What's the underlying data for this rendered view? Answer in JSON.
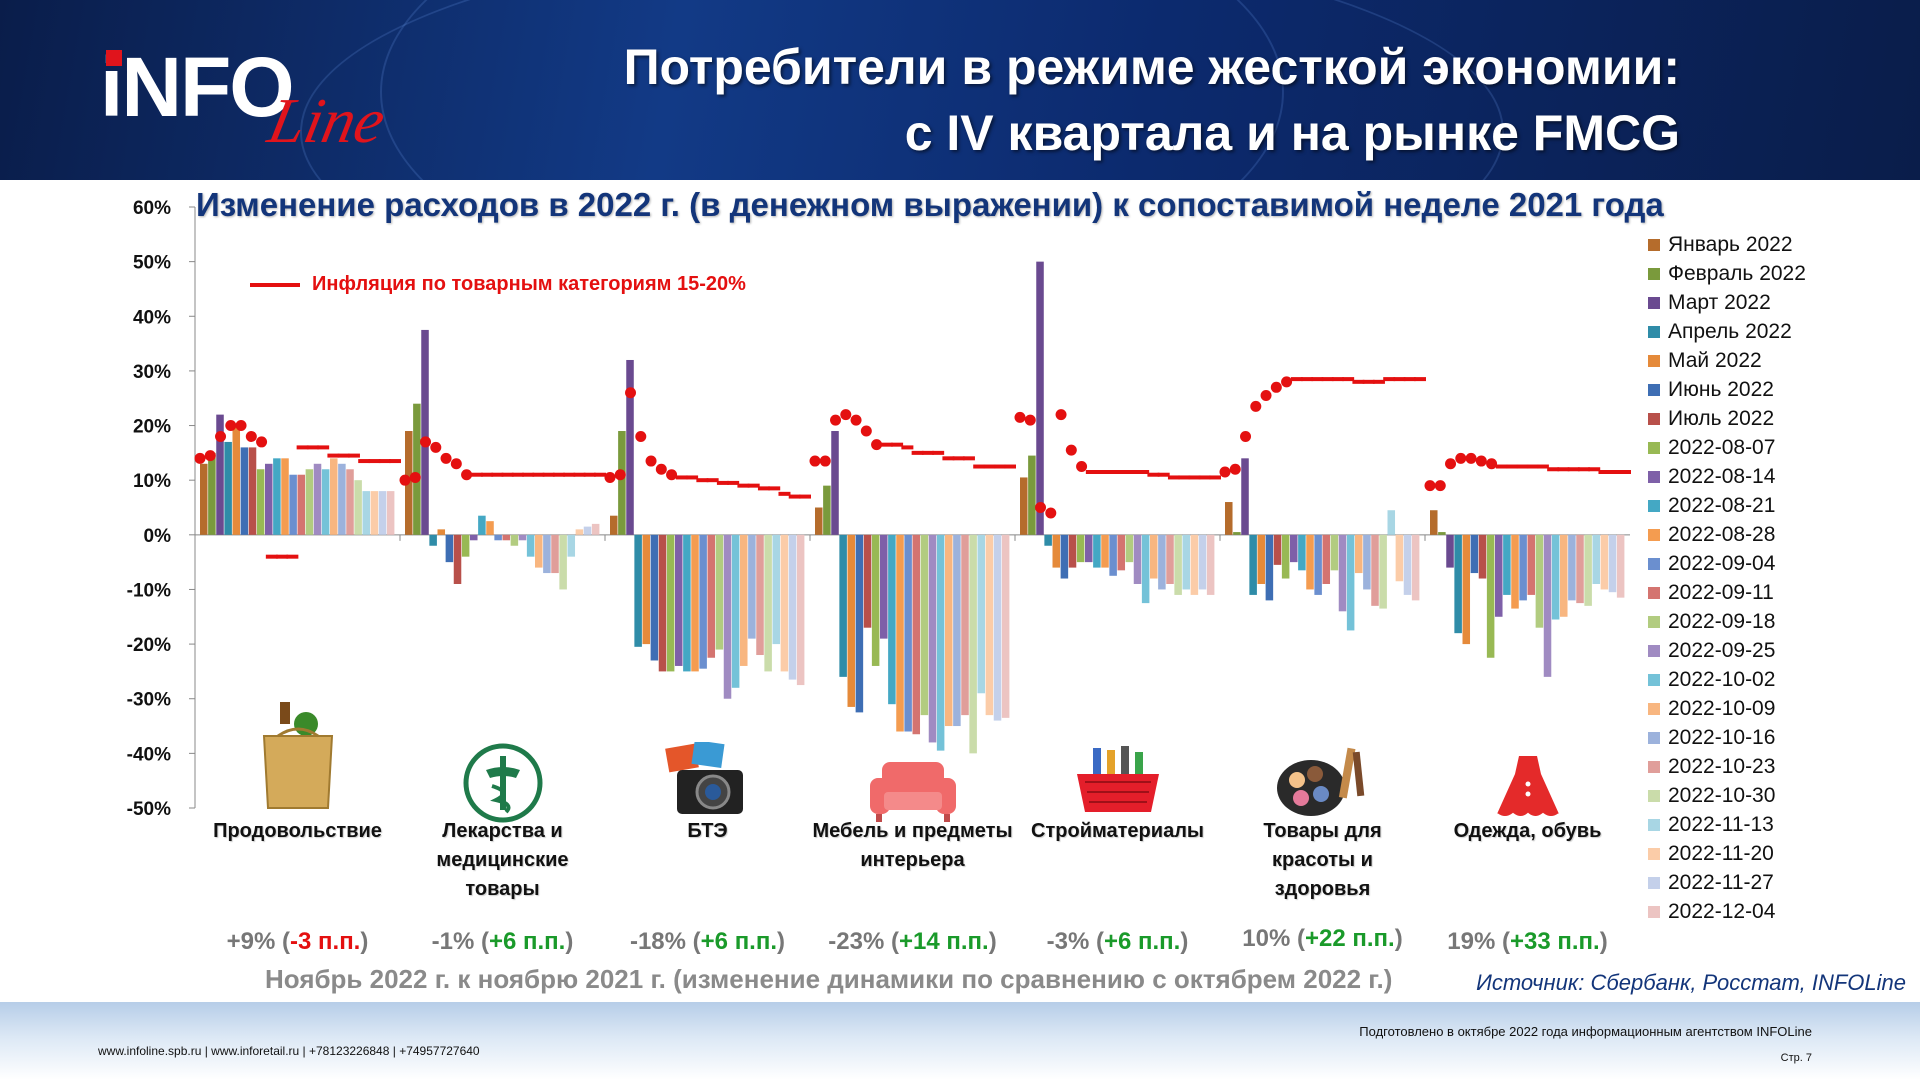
{
  "header": {
    "logo_text": "iNFO",
    "logo_script": "Line",
    "title_line1": "Потребители в режиме жесткой экономии:",
    "title_line2": "с IV квартала и на рынке FMCG"
  },
  "colors": {
    "inflation": "#e41010",
    "title_blue": "#13357a",
    "positive": "#1a9a2a",
    "negative": "#e41010"
  },
  "chart_data": {
    "type": "bar",
    "title": "Изменение расходов в 2022 г. (в денежном выражении) к сопоставимой неделе 2021 года",
    "ylim": [
      -50,
      60
    ],
    "yticks": [
      "60%",
      "50%",
      "40%",
      "30%",
      "20%",
      "10%",
      "0%",
      "-10%",
      "-20%",
      "-30%",
      "-40%",
      "-50%"
    ],
    "legend_position": "right",
    "series": [
      {
        "name": "Январь 2022",
        "color": "#b56c2c"
      },
      {
        "name": "Февраль 2022",
        "color": "#7a9a3c"
      },
      {
        "name": "Март 2022",
        "color": "#6a4a90"
      },
      {
        "name": "Апрель 2022",
        "color": "#2f8ca8"
      },
      {
        "name": "Май 2022",
        "color": "#e58a3a"
      },
      {
        "name": "Июнь 2022",
        "color": "#3e6eb4"
      },
      {
        "name": "Июль 2022",
        "color": "#b8504a"
      },
      {
        "name": "2022-08-07",
        "color": "#98b954"
      },
      {
        "name": "2022-08-14",
        "color": "#7e60a8"
      },
      {
        "name": "2022-08-21",
        "color": "#44a8c4"
      },
      {
        "name": "2022-08-28",
        "color": "#f49c50"
      },
      {
        "name": "2022-09-04",
        "color": "#6b8fcf"
      },
      {
        "name": "2022-09-11",
        "color": "#d47470"
      },
      {
        "name": "2022-09-18",
        "color": "#b2cc80"
      },
      {
        "name": "2022-09-25",
        "color": "#a08bc2"
      },
      {
        "name": "2022-10-02",
        "color": "#74c2d8"
      },
      {
        "name": "2022-10-09",
        "color": "#f8b680"
      },
      {
        "name": "2022-10-16",
        "color": "#9cb2dc"
      },
      {
        "name": "2022-10-23",
        "color": "#e09e9a"
      },
      {
        "name": "2022-10-30",
        "color": "#cadcaa"
      },
      {
        "name": "2022-11-13",
        "color": "#a8d6e4"
      },
      {
        "name": "2022-11-20",
        "color": "#fbcca8"
      },
      {
        "name": "2022-11-27",
        "color": "#c4d0ea"
      },
      {
        "name": "2022-12-04",
        "color": "#ecc4c2"
      }
    ],
    "categories": [
      {
        "label_lines": [
          "Продовольствие"
        ],
        "icon": "grocery-bag-icon",
        "values": [
          13,
          15,
          22,
          17,
          20,
          16,
          16,
          12,
          13,
          14,
          14,
          11,
          11,
          12,
          13,
          12,
          14,
          13,
          12,
          10,
          8,
          8,
          8,
          8
        ],
        "inflation": [
          14,
          14.5,
          18,
          20,
          20,
          18,
          17,
          -4,
          -4,
          -4,
          16,
          16,
          16,
          14.5,
          14.5,
          14.5,
          13.5,
          13.5,
          13.5,
          13.5
        ]
      },
      {
        "label_lines": [
          "Лекарства и",
          "медицинские",
          "товары"
        ],
        "icon": "pharmacy-icon",
        "values": [
          19,
          24,
          37.5,
          -2,
          1,
          -5,
          -9,
          -4,
          -1,
          3.5,
          2.5,
          -1,
          -1,
          -2,
          -1,
          -4,
          -6,
          -7,
          -7,
          -10,
          -4,
          1,
          1.5,
          2
        ],
        "inflation": [
          10,
          10.5,
          17,
          16,
          14,
          13,
          11,
          11,
          11,
          11,
          11,
          11,
          11,
          11,
          11,
          11,
          11,
          11,
          11,
          11
        ]
      },
      {
        "label_lines": [
          "БТЭ"
        ],
        "icon": "camera-icon",
        "values": [
          3.5,
          19,
          32,
          -20.5,
          -20,
          -23,
          -25,
          -25,
          -24,
          -25,
          -25,
          -24.5,
          -22.5,
          -21,
          -30,
          -28,
          -24,
          -19,
          -22,
          -25,
          -20,
          -25,
          -26.5,
          -27.5
        ],
        "inflation": [
          10.5,
          11,
          26,
          18,
          13.5,
          12,
          11,
          10.5,
          10.5,
          10,
          10,
          9.5,
          9.5,
          9,
          9,
          8.5,
          8.5,
          7.5,
          7,
          7
        ]
      },
      {
        "label_lines": [
          "Мебель и предметы",
          "интерьера"
        ],
        "icon": "sofa-icon",
        "values": [
          5,
          9,
          19,
          -26,
          -31.5,
          -32.5,
          -17,
          -24,
          -19,
          -31,
          -36,
          -36,
          -36.5,
          -33,
          -38,
          -39.5,
          -35,
          -35,
          -33,
          -40,
          -29,
          -33,
          -34,
          -33.5
        ],
        "inflation": [
          13.5,
          13.5,
          21,
          22,
          21,
          19,
          16.5,
          16.5,
          16.5,
          16,
          15,
          15,
          15,
          14,
          14,
          14,
          12.5,
          12.5,
          12.5,
          12.5
        ]
      },
      {
        "label_lines": [
          "Стройматериалы"
        ],
        "icon": "toolbox-icon",
        "values": [
          10.5,
          14.5,
          50,
          -2,
          -6,
          -8,
          -6,
          -5,
          -5,
          -6,
          -6,
          -7.5,
          -6.5,
          -5,
          -9,
          -12.5,
          -8,
          -10,
          -9,
          -11,
          -10,
          -11,
          -10,
          -11
        ],
        "inflation": [
          21.5,
          21,
          5,
          4,
          22,
          15.5,
          12.5,
          11.5,
          11.5,
          11.5,
          11.5,
          11.5,
          11.5,
          11,
          11,
          10.5,
          10.5,
          10.5,
          10.5,
          10.5
        ]
      },
      {
        "label_lines": [
          "Товары для",
          "красоты и",
          "здоровья"
        ],
        "icon": "makeup-icon",
        "values": [
          6,
          0.5,
          14,
          -11,
          -9,
          -12,
          -5.5,
          -8,
          -5,
          -6.5,
          -10,
          -11,
          -9,
          -6.5,
          -14,
          -17.5,
          -7,
          -10,
          -13,
          -13.5,
          4.5,
          -8.5,
          -11,
          -12
        ],
        "inflation": [
          11.5,
          12,
          18,
          23.5,
          25.5,
          27,
          28,
          28.5,
          28.5,
          28.5,
          28.5,
          28.5,
          28.5,
          28,
          28,
          28,
          28.5,
          28.5,
          28.5,
          28.5
        ]
      },
      {
        "label_lines": [
          "Одежда, обувь"
        ],
        "icon": "dress-icon",
        "values": [
          4.5,
          0.5,
          -6,
          -18,
          -20,
          -7,
          -8,
          -22.5,
          -15,
          -11,
          -13.5,
          -12,
          -11,
          -17,
          -26,
          -15.5,
          -15,
          -12,
          -12.5,
          -13,
          -9,
          -10,
          -10.5,
          -11.5
        ],
        "inflation": [
          9,
          9,
          13,
          14,
          14,
          13.5,
          13,
          12.5,
          12.5,
          12.5,
          12.5,
          12.5,
          12,
          12,
          12,
          12,
          12,
          11.5,
          11.5,
          11.5
        ]
      }
    ],
    "inflation_legend": "Инфляция по товарным категориям 15-20%"
  },
  "changes": [
    {
      "base": "+9% (",
      "delta": "-3 п.п.",
      "sign": "neg",
      "close": ")"
    },
    {
      "base": "-1% (",
      "delta": "+6 п.п.",
      "sign": "pos",
      "close": ")"
    },
    {
      "base": "-18% (",
      "delta": "+6 п.п.",
      "sign": "pos",
      "close": ")"
    },
    {
      "base": "-23% (",
      "delta": "+14 п.п.",
      "sign": "pos",
      "close": ")"
    },
    {
      "base": "-3% (",
      "delta": "+6 п.п.",
      "sign": "pos",
      "close": ")"
    },
    {
      "base": "10% (",
      "delta": "+22 п.п.",
      "sign": "pos",
      "close": ")"
    },
    {
      "base": "19% (",
      "delta": "+33 п.п.",
      "sign": "pos",
      "close": ")"
    }
  ],
  "footnote": "Ноябрь 2022 г. к ноябрю 2021 г. (изменение динамики по сравнению с октябрем 2022 г.)",
  "source": "Источник: Сбербанк, Росстат, INFOLine",
  "footer": {
    "contacts": "www.infoline.spb.ru | www.inforetail.ru | +78123226848 | +74957727640",
    "prepared": "Подготовлено в октябре 2022 года информационным агентством INFOLine",
    "page": "Стр. 7"
  }
}
